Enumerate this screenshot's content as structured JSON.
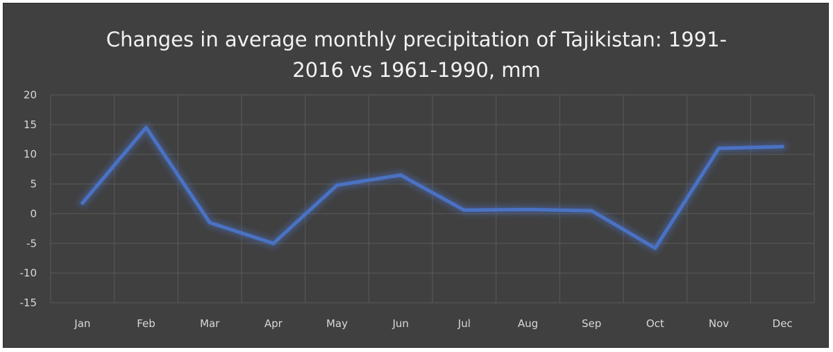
{
  "chart_data": {
    "type": "line",
    "title_lines": [
      "Changes in average monthly precipitation of Tajikistan: 1991-",
      "2016 vs 1961-1990, mm"
    ],
    "xlabel": "",
    "ylabel": "",
    "categories": [
      "Jan",
      "Feb",
      "Mar",
      "Apr",
      "May",
      "Jun",
      "Jul",
      "Aug",
      "Sep",
      "Oct",
      "Nov",
      "Dec"
    ],
    "series": [
      {
        "name": "Change",
        "values": [
          1.8,
          14.5,
          -1.5,
          -5,
          4.8,
          6.5,
          0.6,
          0.7,
          0.5,
          -5.8,
          11,
          11.3
        ]
      }
    ],
    "ylim": [
      -15,
      20
    ],
    "yticks": [
      20,
      15,
      10,
      5,
      0,
      -5,
      -10,
      -15
    ],
    "ytick_labels": [
      "20",
      "15",
      "10",
      "5",
      "0",
      "-5",
      "-10",
      "-15"
    ],
    "grid": true,
    "legend": "none",
    "colors": {
      "background": "#404040",
      "line": "#4a72c4",
      "grid": "#5a5a5a",
      "text": "#d9d9d9",
      "title": "#f2f2f2"
    }
  }
}
